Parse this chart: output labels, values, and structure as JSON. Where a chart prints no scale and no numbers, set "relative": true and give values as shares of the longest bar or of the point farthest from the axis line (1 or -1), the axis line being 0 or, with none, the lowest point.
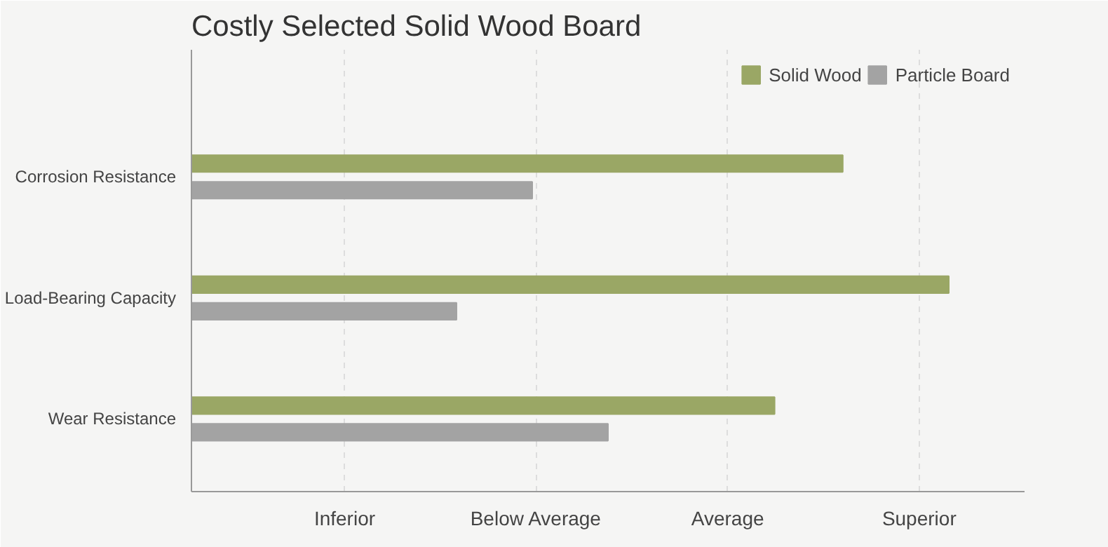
{
  "chart_data": {
    "type": "bar",
    "orientation": "horizontal",
    "title": "Costly Selected Solid Wood Board",
    "relative": true,
    "categories": [
      "Corrosion Resistance",
      "Load-Bearing Capacity",
      "Wear Resistance"
    ],
    "series": [
      {
        "name": "Solid Wood",
        "color": "#9aa765",
        "values": [
          0.86,
          1,
          0.77
        ]
      },
      {
        "name": "Particle Board",
        "color": "#a3a3a3",
        "values": [
          0.45,
          0.35,
          0.55
        ]
      }
    ],
    "annotations": [
      "Inferior",
      "Below Average",
      "Average",
      "Superior"
    ],
    "grid": "x",
    "legend": "top right"
  }
}
